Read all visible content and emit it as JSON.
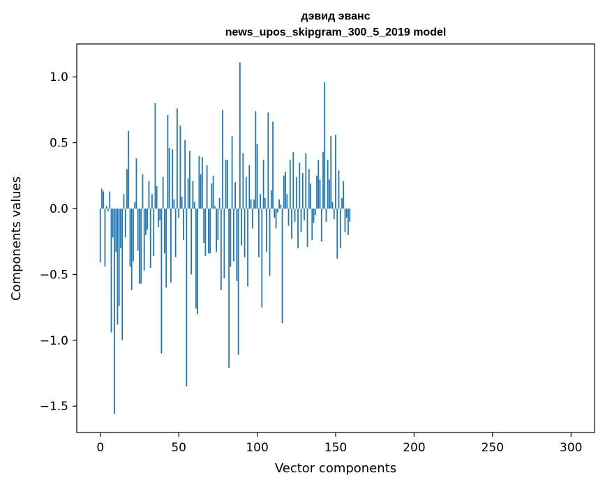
{
  "chart_data": {
    "type": "bar",
    "title": "дэвид эванс",
    "subtitle": "news_upos_skipgram_300_5_2019 model",
    "xlabel": "Vector components",
    "ylabel": "Components values",
    "xlim": [
      -15,
      315
    ],
    "ylim": [
      -1.7,
      1.25
    ],
    "xticks": [
      0,
      50,
      100,
      150,
      200,
      250,
      300
    ],
    "xtick_labels": [
      "0",
      "50",
      "100",
      "150",
      "200",
      "250",
      "300"
    ],
    "yticks": [
      -1.5,
      -1.0,
      -0.5,
      0.0,
      0.5,
      1.0
    ],
    "ytick_labels": [
      "−1.5",
      "−1.0",
      "−0.5",
      "0.0",
      "0.5",
      "1.0"
    ],
    "grid": false,
    "bar_color": "#1f77b4",
    "series": [
      {
        "name": "components",
        "x_start": 0,
        "values": [
          -0.41,
          0.15,
          0.13,
          -0.44,
          0.02,
          -0.02,
          0.13,
          -0.94,
          -0.22,
          -1.56,
          -0.33,
          -0.88,
          -0.74,
          -0.3,
          -1.0,
          0.11,
          -0.22,
          0.3,
          0.59,
          -0.44,
          -0.62,
          -0.4,
          0.05,
          0.38,
          -0.32,
          -0.57,
          -0.57,
          0.26,
          -0.47,
          -0.2,
          -0.16,
          0.21,
          -0.45,
          0.11,
          -0.36,
          0.8,
          0.17,
          -0.14,
          -0.09,
          -1.1,
          0.24,
          -0.34,
          -0.6,
          0.71,
          0.46,
          -0.56,
          0.45,
          0.07,
          -0.37,
          0.76,
          -0.07,
          0.63,
          0.09,
          -0.24,
          0.52,
          -1.35,
          0.23,
          0.44,
          -0.5,
          0.21,
          0.05,
          -0.76,
          -0.8,
          0.4,
          0.26,
          0.39,
          -0.26,
          -0.36,
          0.33,
          -0.34,
          -0.34,
          0.19,
          0.25,
          0.02,
          -0.33,
          -0.24,
          0.08,
          -0.62,
          0.75,
          -0.53,
          0.37,
          0.37,
          -1.21,
          -0.44,
          0.55,
          -0.4,
          0.2,
          -0.55,
          -1.11,
          1.11,
          -0.28,
          0.42,
          -0.37,
          0.24,
          -0.59,
          0.33,
          0.07,
          -0.15,
          0.07,
          0.74,
          0.49,
          -0.37,
          0.11,
          -0.75,
          0.37,
          0.08,
          -0.33,
          0.73,
          -0.51,
          0.14,
          0.66,
          -0.07,
          -0.15,
          -0.03,
          0.07,
          0.03,
          -0.87,
          0.25,
          0.28,
          0.11,
          -0.13,
          0.37,
          -0.23,
          0.43,
          -0.1,
          0.24,
          -0.3,
          0.35,
          -0.18,
          0.27,
          -0.09,
          0.42,
          -0.29,
          0.3,
          0.19,
          -0.24,
          -0.11,
          -0.05,
          0.25,
          0.37,
          0.22,
          -0.25,
          0.43,
          0.96,
          -0.1,
          0.37,
          0.22,
          0.55,
          0.05,
          -0.08,
          0.56,
          -0.38,
          0.29,
          -0.3,
          0.08,
          0.21,
          -0.18,
          -0.07,
          -0.2,
          -0.1
        ]
      }
    ]
  }
}
